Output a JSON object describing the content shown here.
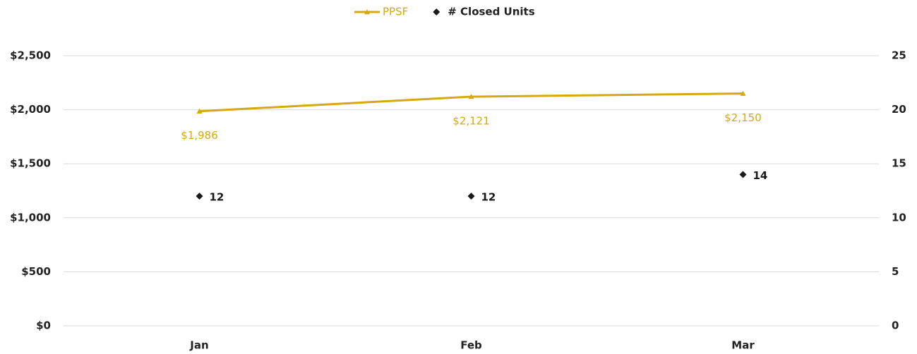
{
  "chart_data": {
    "type": "line",
    "categories": [
      "Jan",
      "Feb",
      "Mar"
    ],
    "series": [
      {
        "name": "PPSF",
        "color": "#d6a90f",
        "marker": "triangle",
        "values": [
          1986,
          2121,
          2150
        ],
        "value_labels": [
          "$1,986",
          "$2,121",
          "$2,150"
        ]
      },
      {
        "name": "# Closed Units",
        "type": "scatter",
        "color": "#1a1a1a",
        "marker": "diamond",
        "axis": "y2",
        "values": [
          12,
          12,
          14
        ]
      }
    ],
    "ylim": [
      0,
      2500
    ],
    "yticks": [
      {
        "value": 0,
        "label": "$0"
      },
      {
        "value": 500,
        "label": "$500"
      },
      {
        "value": 1000,
        "label": "$1,000"
      },
      {
        "value": 1500,
        "label": "$1,500"
      },
      {
        "value": 2000,
        "label": "$2,000"
      },
      {
        "value": 2500,
        "label": "$2,500"
      }
    ],
    "y2lim": [
      0,
      25
    ],
    "y2ticks": [
      0,
      5,
      10,
      15,
      20,
      25
    ],
    "grid": true,
    "legend": "top"
  }
}
